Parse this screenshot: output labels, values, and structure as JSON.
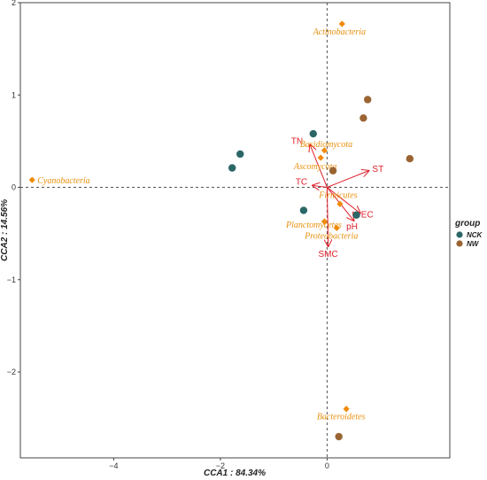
{
  "chart_data": {
    "type": "scatter",
    "xlabel": "CCA1 : 84.34%",
    "ylabel": "CCA2 : 14.56%",
    "xlim": [
      -5.75,
      2.3
    ],
    "ylim": [
      -2.93,
      2.0
    ],
    "x_ticks": [
      -4,
      -2,
      0
    ],
    "y_ticks": [
      -2,
      -1,
      0,
      1,
      2
    ],
    "reference_lines": {
      "x": 0,
      "y": 0
    },
    "grid": false,
    "legend": {
      "title": "group",
      "placement": "right",
      "entries": [
        {
          "name": "NCK",
          "color": "#2b6766"
        },
        {
          "name": "NW",
          "color": "#9a6432"
        }
      ]
    },
    "samples": [
      {
        "group": "NCK",
        "x": -1.78,
        "y": 0.21
      },
      {
        "group": "NCK",
        "x": -1.63,
        "y": 0.36
      },
      {
        "group": "NCK",
        "x": -0.26,
        "y": 0.58
      },
      {
        "group": "NCK",
        "x": -0.44,
        "y": -0.25
      },
      {
        "group": "NCK",
        "x": 0.55,
        "y": -0.3
      },
      {
        "group": "NW",
        "x": 0.76,
        "y": 0.95
      },
      {
        "group": "NW",
        "x": 0.68,
        "y": 0.75
      },
      {
        "group": "NW",
        "x": 0.11,
        "y": 0.18
      },
      {
        "group": "NW",
        "x": 1.55,
        "y": 0.31
      },
      {
        "group": "NW",
        "x": 0.22,
        "y": -2.7
      }
    ],
    "taxa": [
      {
        "name": "Actinobacteria",
        "x": 0.28,
        "y": 1.77,
        "color": "#f08a0a"
      },
      {
        "name": "Basidiomycota",
        "x": -0.05,
        "y": 0.4,
        "color": "#f08a0a"
      },
      {
        "name": "Ascomycota",
        "x": -0.12,
        "y": 0.32,
        "color": "#f08a0a"
      },
      {
        "name": "Cyanobacteria",
        "x": -5.53,
        "y": 0.08,
        "color": "#f08a0a"
      },
      {
        "name": "Firmicutes",
        "x": 0.24,
        "y": -0.18,
        "color": "#f08a0a"
      },
      {
        "name": "Planctomycetes",
        "x": -0.05,
        "y": -0.37,
        "color": "#f08a0a"
      },
      {
        "name": "Proteobacteria",
        "x": 0.18,
        "y": -0.44,
        "color": "#f08a0a"
      },
      {
        "name": "Bacteroidetes",
        "x": 0.36,
        "y": -2.4,
        "color": "#f08a0a"
      }
    ],
    "environment_vectors": [
      {
        "name": "TN",
        "x": -0.32,
        "y": 0.46,
        "color": "#e0202a"
      },
      {
        "name": "ST",
        "x": 0.78,
        "y": 0.18,
        "color": "#e0202a"
      },
      {
        "name": "TC",
        "x": -0.27,
        "y": 0.02,
        "color": "#e0202a"
      },
      {
        "name": "EC",
        "x": 0.62,
        "y": -0.28,
        "color": "#e0202a"
      },
      {
        "name": "pH",
        "x": 0.5,
        "y": -0.36,
        "color": "#e0202a"
      },
      {
        "name": "SMC",
        "x": 0.02,
        "y": -0.64,
        "color": "#e0202a"
      }
    ]
  }
}
